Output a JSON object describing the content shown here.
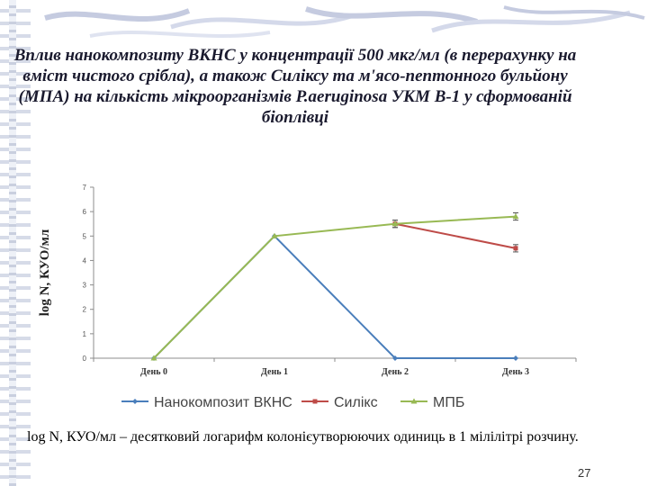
{
  "slide": {
    "title": "Вплив нанокомпозиту ВКНС у концентрації  500 мкг/мл (в перерахунку на вміст чистого срібла), а також Силіксу та м'ясо-пептонного бульйону (МПА) на кількість мікроорганізмів P.aeruginosa УКМ В-1 у сформованій біоплівці",
    "caption": "log N, КУО/мл – десятковий логарифм колонієутворюючих одиниць в 1 мілілітрі розчину.",
    "page_number": "27"
  },
  "chart_data": {
    "type": "line",
    "title": "",
    "xlabel": "",
    "ylabel": "log N, КУО/мл",
    "categories": [
      "День 0",
      "День 1",
      "День 2",
      "День 3"
    ],
    "ylim": [
      0,
      7
    ],
    "yticks": [
      "0",
      "1",
      "2",
      "3",
      "4",
      "5",
      "6",
      "7"
    ],
    "grid": false,
    "legend_position": "bottom",
    "series": [
      {
        "name": "Нанокомпозит ВКНС",
        "color": "#4a7ebb",
        "marker": "diamond",
        "values": [
          0,
          5,
          0,
          0
        ],
        "errors": [
          null,
          null,
          null,
          null
        ]
      },
      {
        "name": "Силікс",
        "color": "#be4b48",
        "marker": "square",
        "values": [
          null,
          null,
          5.5,
          4.5
        ],
        "errors": [
          null,
          null,
          0.15,
          0.15
        ]
      },
      {
        "name": "МПБ",
        "color": "#98b954",
        "marker": "triangle",
        "values": [
          0,
          5,
          5.5,
          5.8
        ],
        "errors": [
          null,
          null,
          0.15,
          0.15
        ]
      }
    ]
  }
}
